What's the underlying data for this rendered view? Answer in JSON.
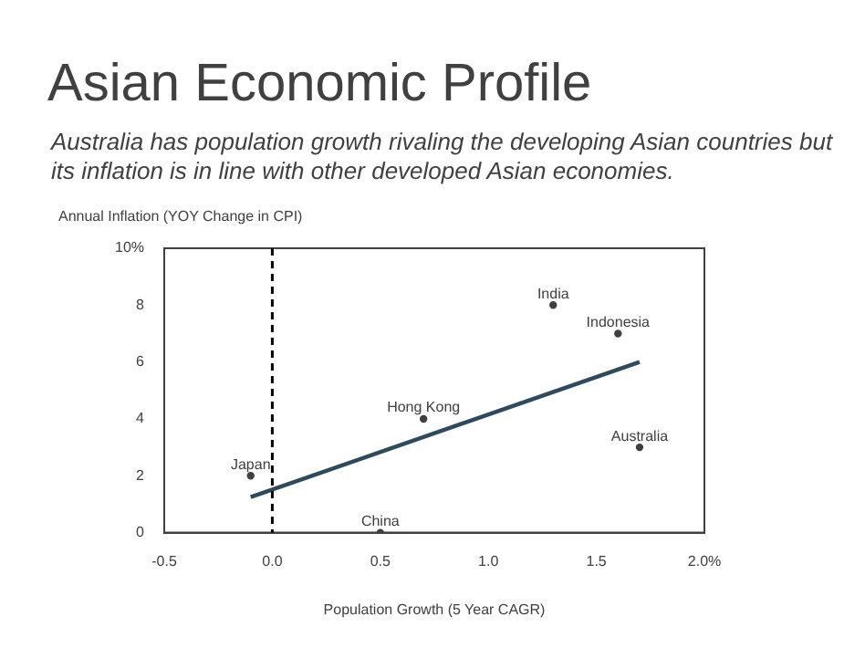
{
  "chart_data": {
    "type": "scatter",
    "title": "Asian Economic Profile",
    "subtitle": "Australia has population growth rivaling the developing Asian countries but its inflation is in line with other developed Asian economies.",
    "xlabel": "Population Growth (5 Year CAGR)",
    "ylabel": "Annual Inflation (YOY Change in CPI)",
    "series": [
      {
        "type": "scatter",
        "color": "#404040",
        "marker": "circle",
        "x": [
          -0.1,
          0.7,
          0.5,
          1.3,
          1.6,
          1.7
        ],
        "values": [
          2.0,
          4.0,
          0.0,
          8.0,
          7.0,
          3.0
        ]
      },
      {
        "type": "line",
        "color": "#2e4a5c",
        "line_style": "solid",
        "marker": "none",
        "x": [
          -0.1,
          1.7
        ],
        "values": [
          1.25,
          6.0
        ]
      }
    ],
    "annotations": [
      {
        "text": "Japan",
        "x": -0.1,
        "y": 2.0
      },
      {
        "text": "Hong Kong",
        "x": 0.7,
        "y": 4.0
      },
      {
        "text": "China",
        "x": 0.5,
        "y": 0.0
      },
      {
        "text": "India",
        "x": 1.3,
        "y": 8.0
      },
      {
        "text": "Indonesia",
        "x": 1.6,
        "y": 7.0
      },
      {
        "text": "Australia",
        "x": 1.7,
        "y": 3.0
      }
    ],
    "ref_lines": [
      {
        "axis": "x",
        "value": 0,
        "color": "#000000",
        "line_style": "dashed"
      }
    ],
    "xlim": [
      -0.5,
      2.0
    ],
    "xticks": [
      -0.5,
      {
        "value": 0,
        "label": "0.0"
      },
      0.5,
      {
        "value": 1,
        "label": "1.0"
      },
      1.5,
      {
        "value": 2,
        "label": "2.0%"
      }
    ],
    "ylim": [
      0,
      10
    ],
    "yticks": [
      0,
      2,
      4,
      6,
      8,
      {
        "value": 10,
        "label": "10%"
      }
    ],
    "grid": false,
    "legend": false
  }
}
